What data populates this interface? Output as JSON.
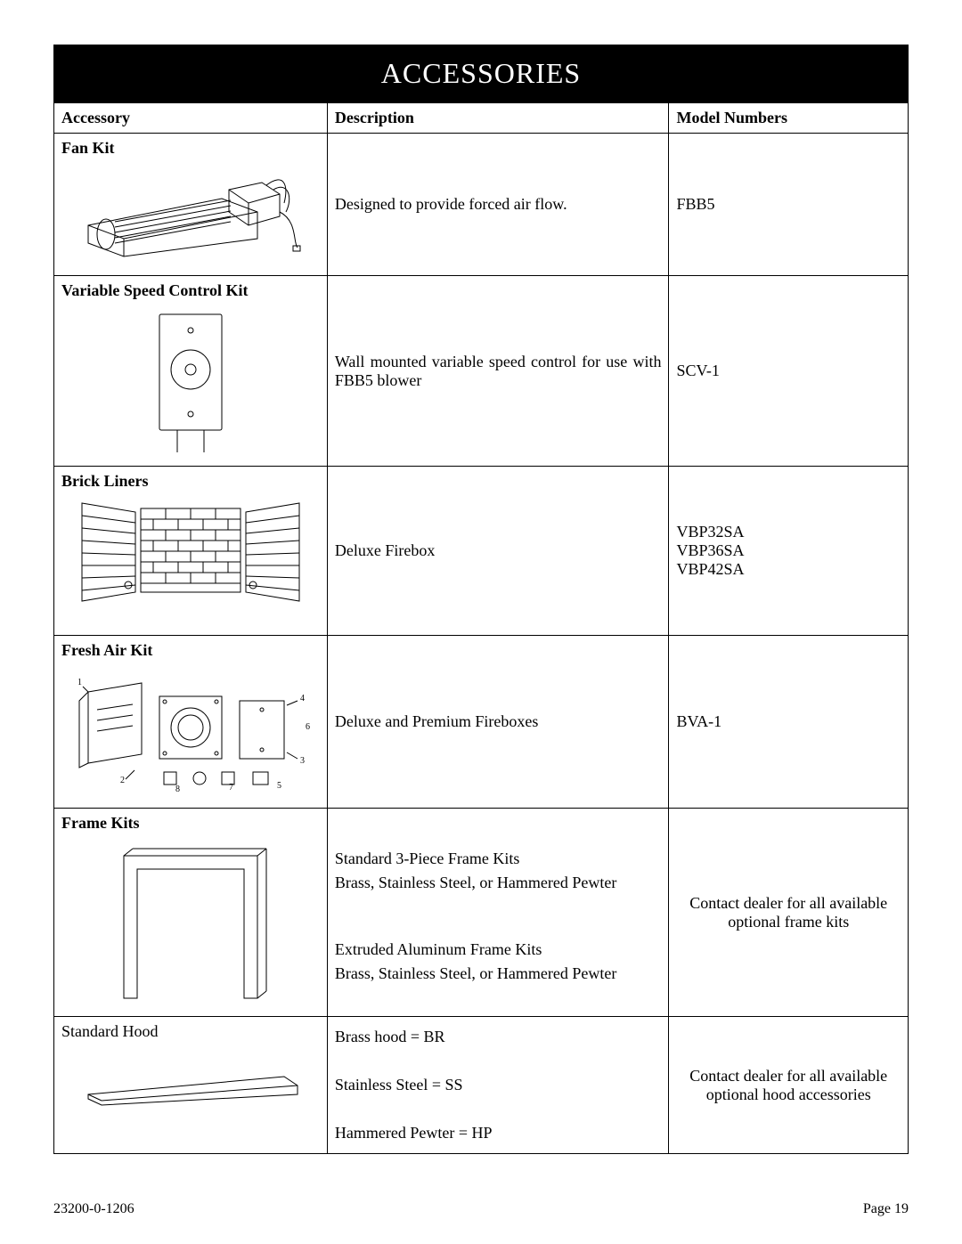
{
  "title": "ACCESSORIES",
  "columns": {
    "accessory": "Accessory",
    "description": "Description",
    "model": "Model Numbers"
  },
  "rows": [
    {
      "name": "Fan Kit",
      "name_bold": true,
      "description": "Designed to provide forced air flow.",
      "desc_justify": false,
      "model": "FBB5"
    },
    {
      "name": "Variable Speed Control Kit",
      "name_bold": true,
      "description": "Wall mounted variable speed control for use with FBB5 blower",
      "desc_justify": true,
      "model": "SCV-1"
    },
    {
      "name": "Brick Liners",
      "name_bold": true,
      "description": "Deluxe Firebox",
      "desc_justify": false,
      "model": "VBP32SA\nVBP36SA\nVBP42SA"
    },
    {
      "name": "Fresh Air Kit",
      "name_bold": true,
      "description": "Deluxe and Premium Fireboxes",
      "desc_justify": false,
      "model": "BVA-1"
    },
    {
      "name": "Frame Kits",
      "name_bold": true,
      "description": "Standard 3-Piece Frame Kits\nBrass, Stainless Steel, or Hammered Pewter\n\n\nExtruded Aluminum Frame Kits\nBrass, Stainless Steel, or Hammered Pewter",
      "desc_justify": false,
      "model": "Contact dealer for all available optional frame kits",
      "model_center": true
    },
    {
      "name": "Standard Hood",
      "name_bold": false,
      "description": "Brass hood = BR\n\nStainless Steel = SS\n\nHammered Pewter = HP",
      "desc_justify": false,
      "model": "Contact dealer for all available optional hood accessories",
      "model_center": true
    }
  ],
  "footer": {
    "left": "23200-0-1206",
    "right": "Page 19"
  },
  "diagram": {
    "stroke": "#000",
    "fill": "#fff",
    "font_family": "Times New Roman",
    "label_fontsize": 10
  }
}
